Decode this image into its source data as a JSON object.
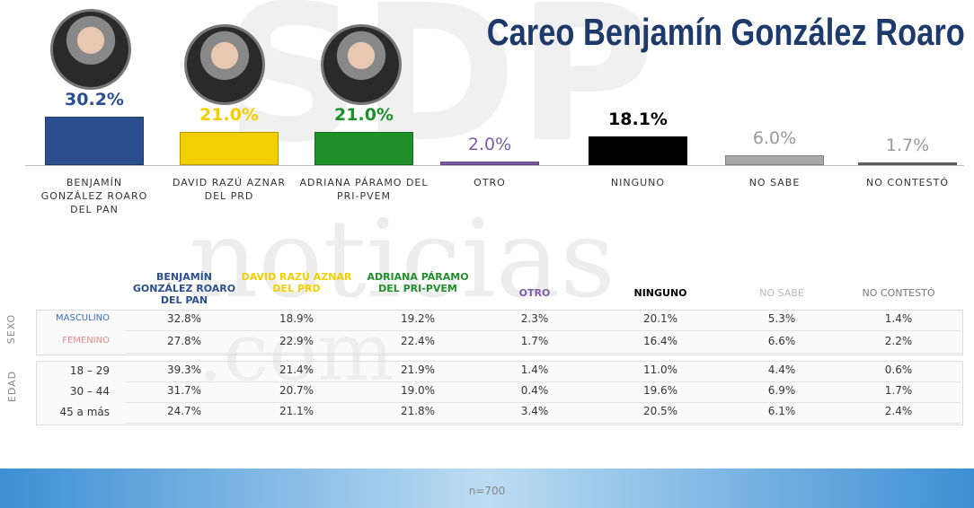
{
  "chart_data": {
    "type": "bar",
    "title": "Careo Benjamín González Roaro",
    "categories": [
      "BENJAMÍN GONZÁLEZ ROARO DEL PAN",
      "DAVID RAZÚ AZNAR DEL PRD",
      "ADRIANA PÁRAMO DEL PRI-PVEM",
      "OTRO",
      "NINGUNO",
      "NO SABE",
      "NO CONTESTÓ"
    ],
    "values": [
      30.2,
      21.0,
      21.0,
      2.0,
      18.1,
      6.0,
      1.7
    ],
    "value_labels": [
      "30.2%",
      "21.0%",
      "21.0%",
      "2.0%",
      "18.1%",
      "6.0%",
      "1.7%"
    ],
    "colors": [
      "#2b4f8e",
      "#f2cf00",
      "#1f8f2a",
      "#7b5ea7",
      "#000000",
      "#a8a8a8",
      "#6e6e6e"
    ]
  },
  "watermark": [
    "SDP",
    "noticias",
    ".com"
  ],
  "table": {
    "columns": [
      "BENJAMÍN GONZÁLEZ ROARO DEL PAN",
      "DAVID RAZÚ AZNAR DEL PRD",
      "ADRIANA PÁRAMO DEL PRI-PVEM",
      "OTRO",
      "NINGUNO",
      "NO SABE",
      "NO CONTESTÓ"
    ],
    "groups": [
      {
        "label": "SEXO",
        "rows": [
          {
            "label": "MASCULINO",
            "values": [
              "32.8%",
              "18.9%",
              "19.2%",
              "2.3%",
              "20.1%",
              "5.3%",
              "1.4%"
            ]
          },
          {
            "label": "FEMENINO",
            "values": [
              "27.8%",
              "22.9%",
              "22.4%",
              "1.7%",
              "16.4%",
              "6.6%",
              "2.2%"
            ]
          }
        ]
      },
      {
        "label": "EDAD",
        "rows": [
          {
            "label": "18 – 29",
            "values": [
              "39.3%",
              "21.4%",
              "21.9%",
              "1.4%",
              "11.0%",
              "4.4%",
              "0.6%"
            ]
          },
          {
            "label": "30 – 44",
            "values": [
              "31.7%",
              "20.7%",
              "19.0%",
              "0.4%",
              "19.6%",
              "6.9%",
              "1.7%"
            ]
          },
          {
            "label": "45 a más",
            "values": [
              "24.7%",
              "21.1%",
              "21.8%",
              "3.4%",
              "20.5%",
              "6.1%",
              "2.4%"
            ]
          }
        ]
      }
    ]
  },
  "footer": "n=700"
}
